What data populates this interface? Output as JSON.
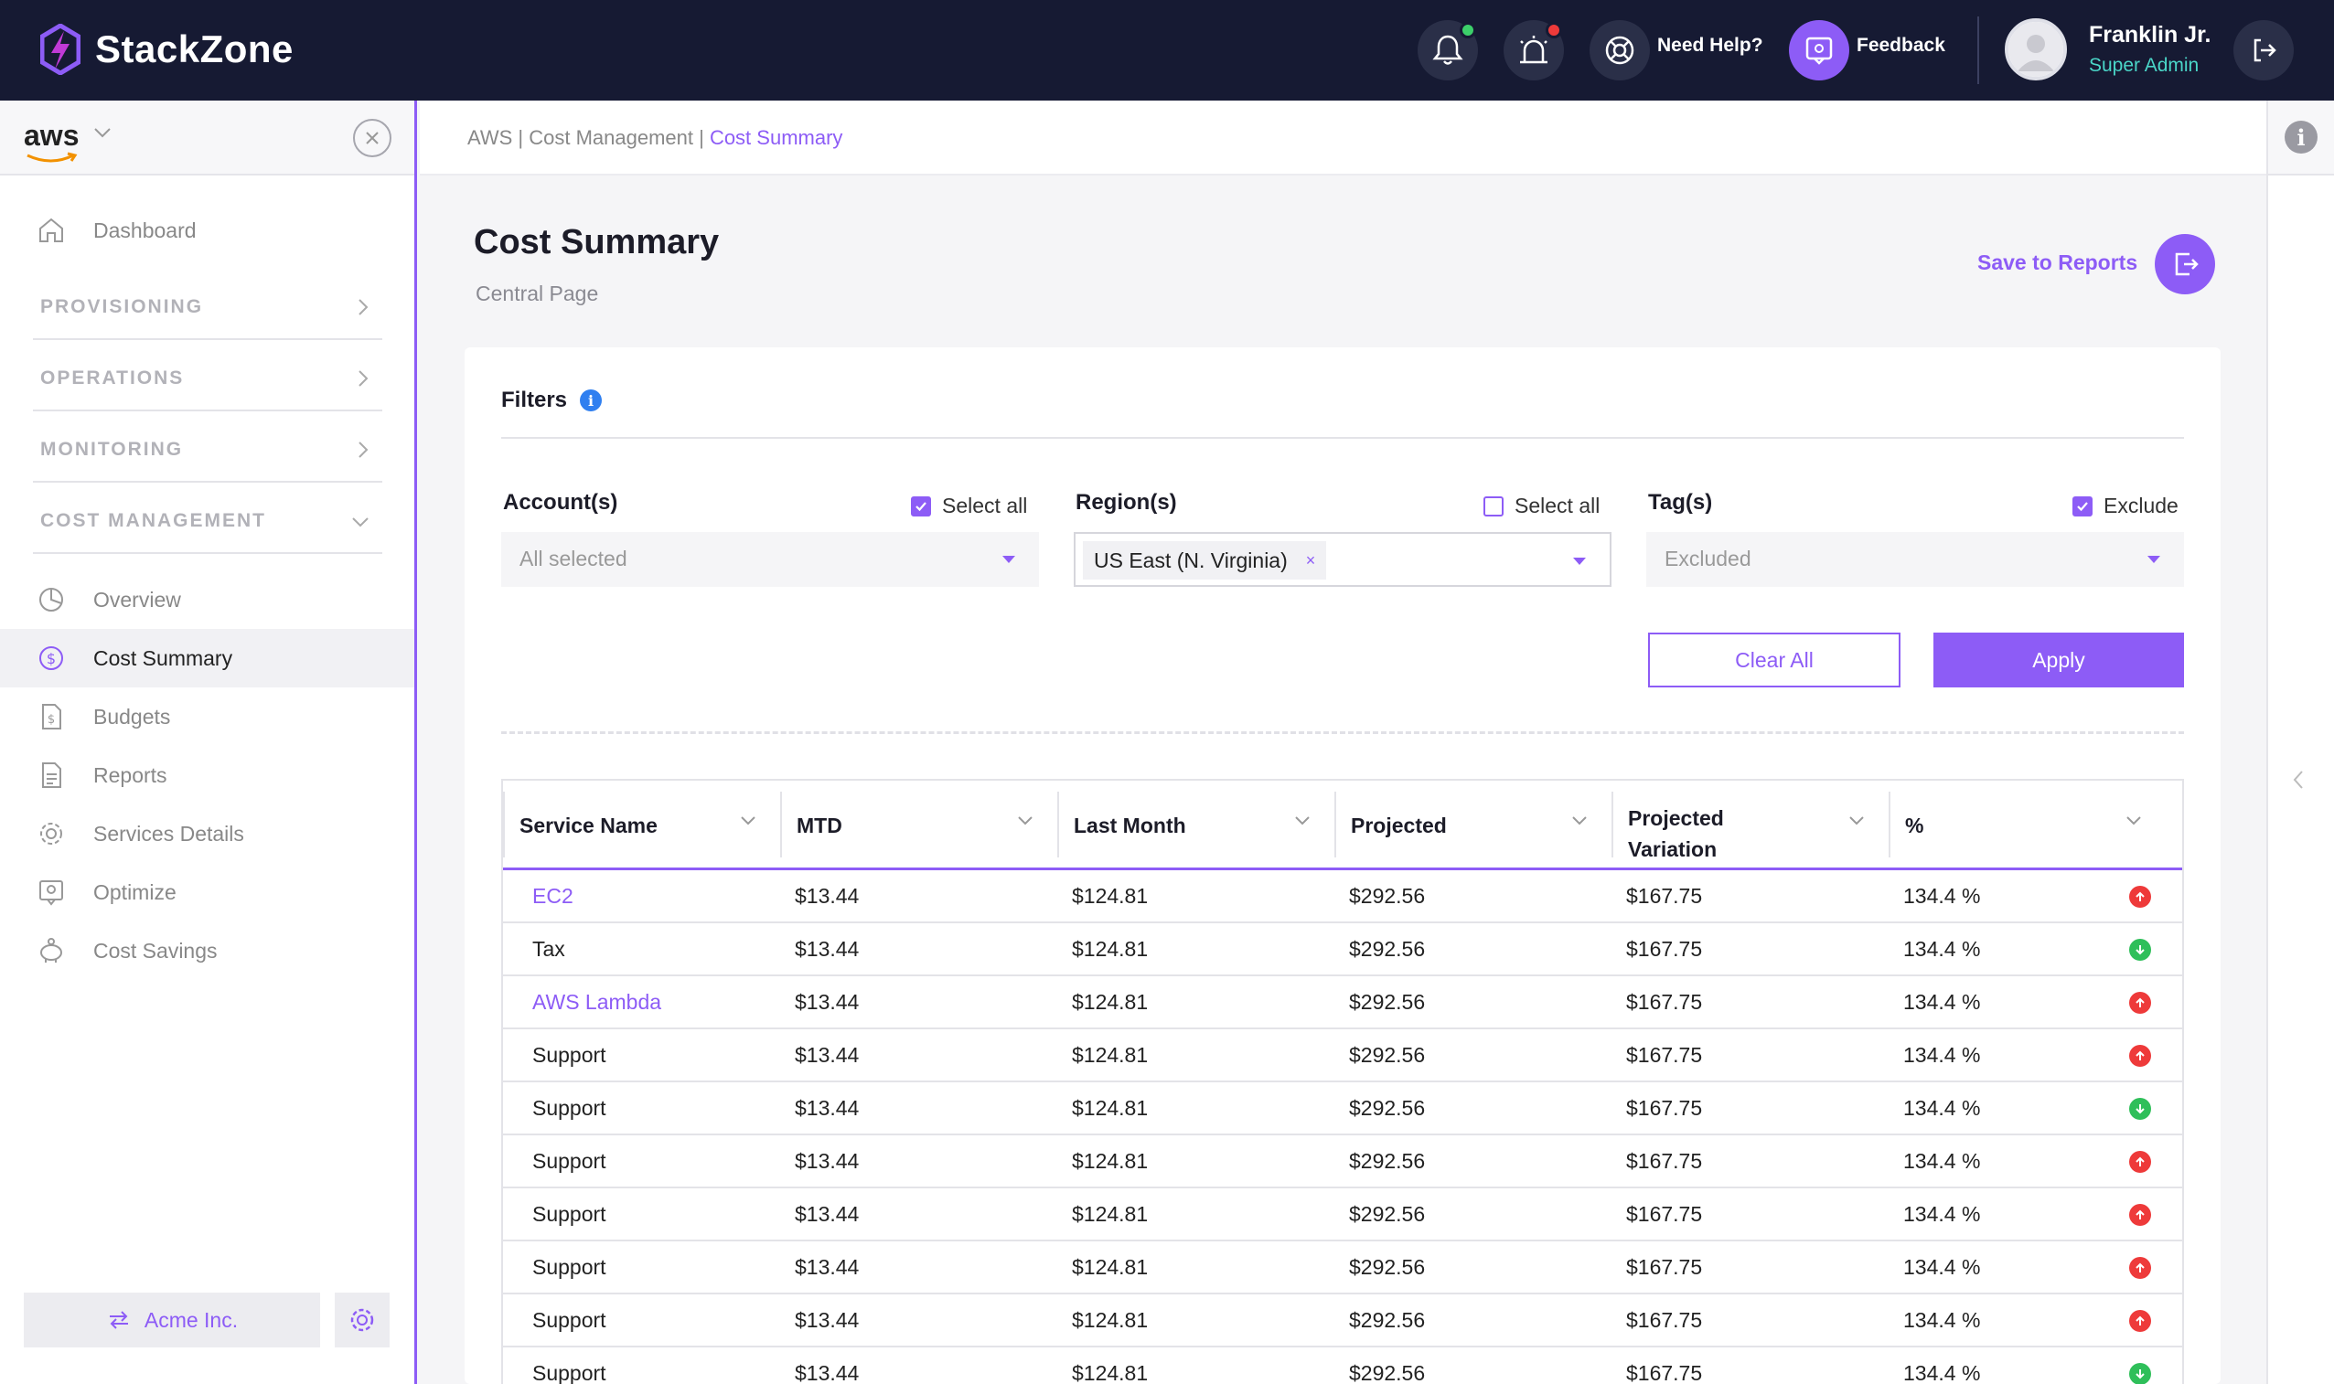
{
  "app": {
    "name": "StackZone"
  },
  "topbar": {
    "help_label": "Need Help?",
    "feedback_label": "Feedback",
    "colors": {
      "notif_dot": "#3ccf6a",
      "alarm_dot": "#ee3a3a",
      "feedback_bg": "#8d5cf6"
    }
  },
  "user": {
    "name": "Franklin Jr.",
    "role": "Super Admin"
  },
  "sidebar": {
    "provider": "aws",
    "dashboard": "Dashboard",
    "sections": [
      "PROVISIONING",
      "OPERATIONS",
      "MONITORING",
      "COST MANAGEMENT"
    ],
    "cost_items": [
      {
        "label": "Overview",
        "icon": "pie-chart-icon"
      },
      {
        "label": "Cost Summary",
        "icon": "dollar-icon"
      },
      {
        "label": "Budgets",
        "icon": "budget-doc-icon"
      },
      {
        "label": "Reports",
        "icon": "report-doc-icon"
      },
      {
        "label": "Services Details",
        "icon": "gear-icon"
      },
      {
        "label": "Optimize",
        "icon": "optimize-icon"
      },
      {
        "label": "Cost Savings",
        "icon": "piggy-bank-icon"
      }
    ],
    "org": "Acme Inc."
  },
  "breadcrumb": {
    "part1": "AWS | Cost Management | ",
    "current": "Cost Summary"
  },
  "page": {
    "title": "Cost Summary",
    "subtitle": "Central Page",
    "save_label": "Save to Reports"
  },
  "filters": {
    "title": "Filters",
    "accounts": {
      "label": "Account(s)",
      "check_label": "Select all",
      "checked": true,
      "placeholder": "All selected"
    },
    "regions": {
      "label": "Region(s)",
      "check_label": "Select all",
      "checked": false,
      "chip": "US East (N. Virginia)",
      "chip_remove": "×"
    },
    "tags": {
      "label": "Tag(s)",
      "check_label": "Exclude",
      "checked": true,
      "placeholder": "Excluded"
    },
    "clear_label": "Clear All",
    "apply_label": "Apply"
  },
  "table": {
    "columns": [
      "Service Name",
      "MTD",
      "Last Month",
      "Projected",
      "Projected Variation",
      "%"
    ],
    "rows": [
      {
        "service": "EC2",
        "link": true,
        "mtd": "$13.44",
        "last": "$124.81",
        "proj": "$292.56",
        "var": "$167.75",
        "pct": "134.4 %",
        "trend": "up"
      },
      {
        "service": "Tax",
        "link": false,
        "mtd": "$13.44",
        "last": "$124.81",
        "proj": "$292.56",
        "var": "$167.75",
        "pct": "134.4 %",
        "trend": "down"
      },
      {
        "service": "AWS Lambda",
        "link": true,
        "mtd": "$13.44",
        "last": "$124.81",
        "proj": "$292.56",
        "var": "$167.75",
        "pct": "134.4 %",
        "trend": "up"
      },
      {
        "service": "Support",
        "link": false,
        "mtd": "$13.44",
        "last": "$124.81",
        "proj": "$292.56",
        "var": "$167.75",
        "pct": "134.4 %",
        "trend": "up"
      },
      {
        "service": "Support",
        "link": false,
        "mtd": "$13.44",
        "last": "$124.81",
        "proj": "$292.56",
        "var": "$167.75",
        "pct": "134.4 %",
        "trend": "down"
      },
      {
        "service": "Support",
        "link": false,
        "mtd": "$13.44",
        "last": "$124.81",
        "proj": "$292.56",
        "var": "$167.75",
        "pct": "134.4 %",
        "trend": "up"
      },
      {
        "service": "Support",
        "link": false,
        "mtd": "$13.44",
        "last": "$124.81",
        "proj": "$292.56",
        "var": "$167.75",
        "pct": "134.4 %",
        "trend": "up"
      },
      {
        "service": "Support",
        "link": false,
        "mtd": "$13.44",
        "last": "$124.81",
        "proj": "$292.56",
        "var": "$167.75",
        "pct": "134.4 %",
        "trend": "up"
      },
      {
        "service": "Support",
        "link": false,
        "mtd": "$13.44",
        "last": "$124.81",
        "proj": "$292.56",
        "var": "$167.75",
        "pct": "134.4 %",
        "trend": "up"
      },
      {
        "service": "Support",
        "link": false,
        "mtd": "$13.44",
        "last": "$124.81",
        "proj": "$292.56",
        "var": "$167.75",
        "pct": "134.4 %",
        "trend": "down"
      }
    ]
  }
}
